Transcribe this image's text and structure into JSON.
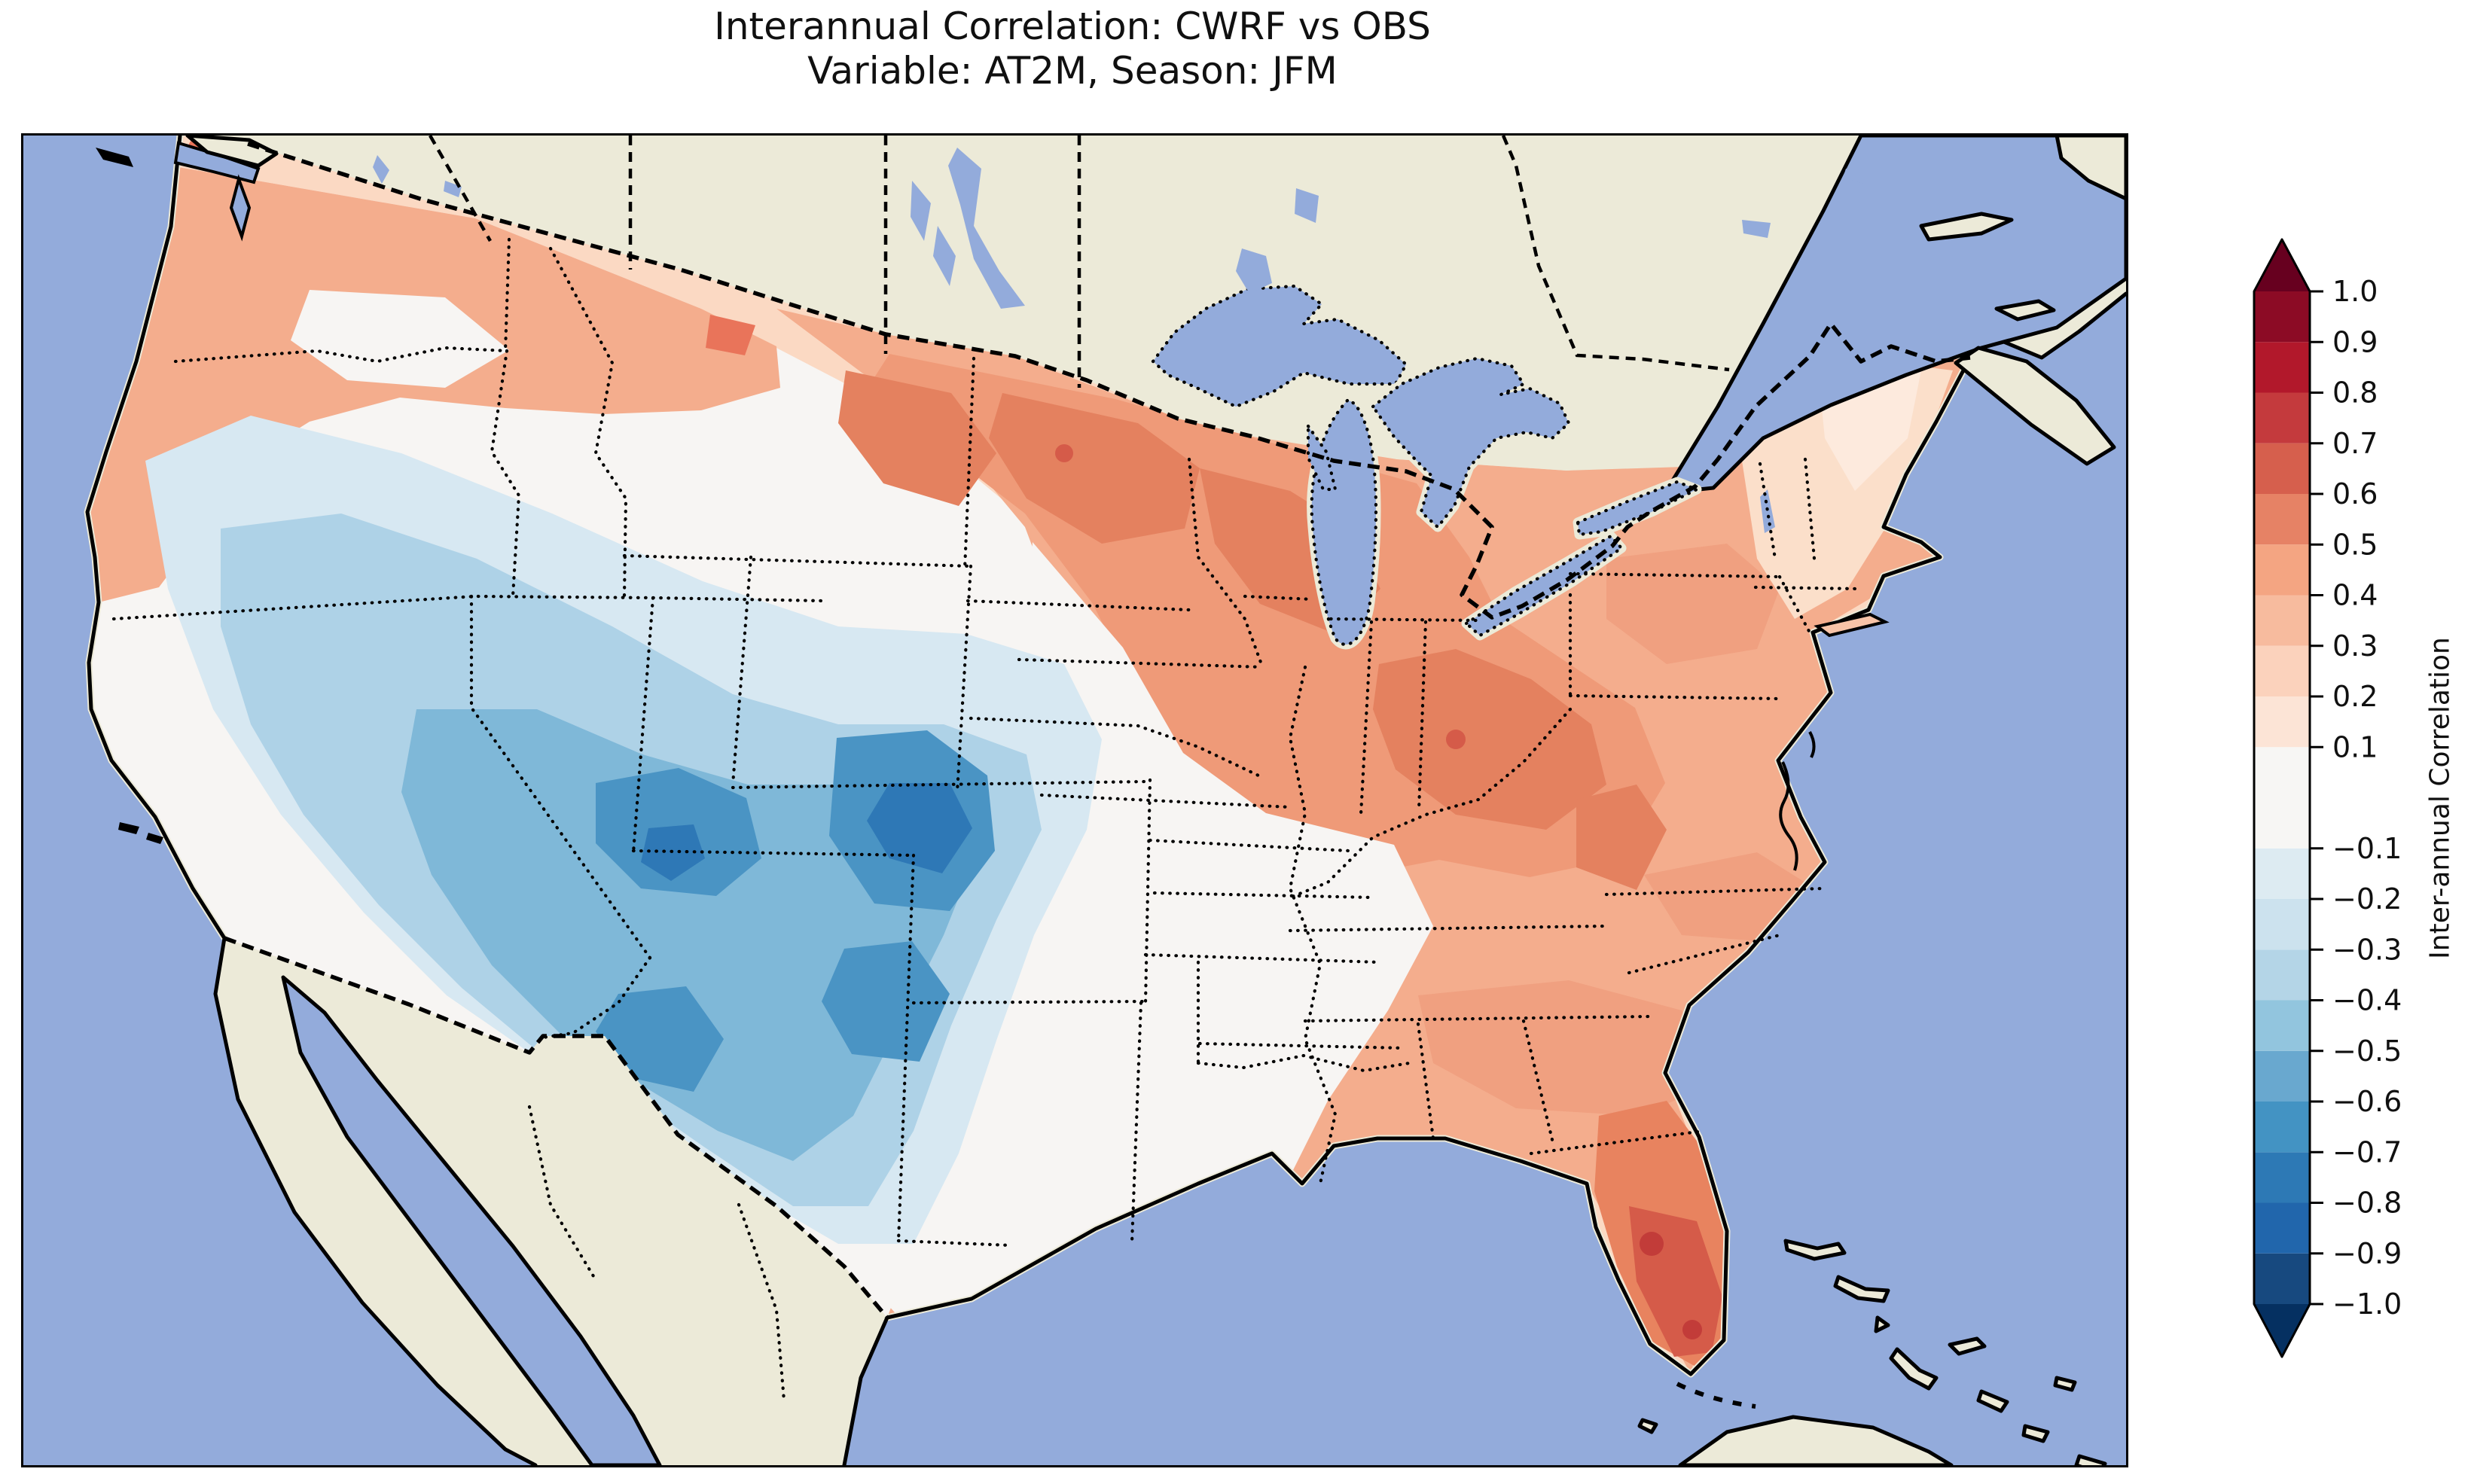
{
  "figure": {
    "title_line1": "Interannual Correlation: CWRF vs OBS",
    "title_line2": "Variable: AT2M, Season: JFM"
  },
  "colorbar": {
    "label": "Inter-annual Correlation",
    "orientation": "vertical",
    "extend": "both",
    "over_color": "#67001f",
    "under_color": "#053061",
    "ticks": [
      {
        "value": 1.0,
        "label": "1.0"
      },
      {
        "value": 0.9,
        "label": "0.9"
      },
      {
        "value": 0.8,
        "label": "0.8"
      },
      {
        "value": 0.7,
        "label": "0.7"
      },
      {
        "value": 0.6,
        "label": "0.6"
      },
      {
        "value": 0.5,
        "label": "0.5"
      },
      {
        "value": 0.4,
        "label": "0.4"
      },
      {
        "value": 0.3,
        "label": "0.3"
      },
      {
        "value": 0.2,
        "label": "0.2"
      },
      {
        "value": 0.1,
        "label": "0.1"
      },
      {
        "value": -0.1,
        "label": "−0.1"
      },
      {
        "value": -0.2,
        "label": "−0.2"
      },
      {
        "value": -0.3,
        "label": "−0.3"
      },
      {
        "value": -0.4,
        "label": "−0.4"
      },
      {
        "value": -0.5,
        "label": "−0.5"
      },
      {
        "value": -0.6,
        "label": "−0.6"
      },
      {
        "value": -0.7,
        "label": "−0.7"
      },
      {
        "value": -0.8,
        "label": "−0.8"
      },
      {
        "value": -0.9,
        "label": "−0.9"
      },
      {
        "value": -1.0,
        "label": "−1.0"
      }
    ],
    "bands": [
      {
        "from": -1.0,
        "to": -0.9,
        "color": "#17497f"
      },
      {
        "from": -0.9,
        "to": -0.8,
        "color": "#2166ac"
      },
      {
        "from": -0.8,
        "to": -0.7,
        "color": "#2d79b5"
      },
      {
        "from": -0.7,
        "to": -0.6,
        "color": "#4393c3"
      },
      {
        "from": -0.6,
        "to": -0.5,
        "color": "#69a8cf"
      },
      {
        "from": -0.5,
        "to": -0.4,
        "color": "#92c5de"
      },
      {
        "from": -0.4,
        "to": -0.3,
        "color": "#b4d5e7"
      },
      {
        "from": -0.3,
        "to": -0.2,
        "color": "#cce2ee"
      },
      {
        "from": -0.2,
        "to": -0.1,
        "color": "#ddebf2"
      },
      {
        "from": -0.1,
        "to": 0.1,
        "color": "#f7f6f4"
      },
      {
        "from": 0.1,
        "to": 0.2,
        "color": "#fce4d6"
      },
      {
        "from": 0.2,
        "to": 0.3,
        "color": "#fbd2bc"
      },
      {
        "from": 0.3,
        "to": 0.4,
        "color": "#f7bb9e"
      },
      {
        "from": 0.4,
        "to": 0.5,
        "color": "#f4a582"
      },
      {
        "from": 0.5,
        "to": 0.6,
        "color": "#e68265"
      },
      {
        "from": 0.6,
        "to": 0.7,
        "color": "#d65f4d"
      },
      {
        "from": 0.7,
        "to": 0.8,
        "color": "#c43a3d"
      },
      {
        "from": 0.8,
        "to": 0.9,
        "color": "#b2182b"
      },
      {
        "from": 0.9,
        "to": 1.0,
        "color": "#8c0b25"
      }
    ]
  },
  "map": {
    "ocean_color": "#93abdb",
    "land_color": "#ecead8",
    "coastline_color": "#000000",
    "state_border_style": "dotted",
    "country_border_style": "dashed",
    "extent": "Continental United States with southern Canada, northern Mexico, Gulf of Mexico, Great Lakes and western Atlantic"
  },
  "chart_data": {
    "type": "heatmap",
    "subtype": "filled-contour-map",
    "title": "Interannual Correlation: CWRF vs OBS",
    "subtitle": "Variable: AT2M, Season: JFM",
    "comparison": "CWRF vs OBS",
    "variable": "AT2M",
    "season": "JFM",
    "colormap": "RdBu_r (discrete bands, 0.1 steps, no 0.0 level)",
    "value_range": [
      -1.0,
      1.0
    ],
    "levels": [
      -1.0,
      -0.9,
      -0.8,
      -0.7,
      -0.6,
      -0.5,
      -0.4,
      -0.3,
      -0.2,
      -0.1,
      0.1,
      0.2,
      0.3,
      0.4,
      0.5,
      0.6,
      0.7,
      0.8,
      0.9,
      1.0
    ],
    "colorbar_label": "Inter-annual Correlation",
    "legend_position": "right",
    "regions": [
      {
        "name": "Pacific Northwest coast (WA, N OR)",
        "approx_correlation": "+0.3 to +0.5"
      },
      {
        "name": "Puget Sound / NW Washington spots",
        "approx_correlation": "+0.5 to +0.6"
      },
      {
        "name": "Interior Northwest (E OR, ID, W WY)",
        "approx_correlation": "-0.1 to +0.2"
      },
      {
        "name": "California coast and Central Valley",
        "approx_correlation": "-0.2 to -0.4"
      },
      {
        "name": "Great Basin (NV, UT)",
        "approx_correlation": "-0.3 to -0.5"
      },
      {
        "name": "Southwest core (AZ, NM, SW CO, Four Corners)",
        "approx_correlation": "-0.5 to -0.7"
      },
      {
        "name": "Eastern Montana and the Dakotas",
        "approx_correlation": "+0.4 to +0.6"
      },
      {
        "name": "Upper Midwest (MN, WI, IA, IL, MI)",
        "approx_correlation": "+0.4 to +0.6"
      },
      {
        "name": "Ohio Valley (IN, OH, KY, WV)",
        "approx_correlation": "+0.4 to +0.6"
      },
      {
        "name": "Central/Southern Plains (KS, OK, most of TX)",
        "approx_correlation": "-0.1 to +0.1"
      },
      {
        "name": "Texas panhandle / NM border fringe",
        "approx_correlation": "-0.1 to -0.3"
      },
      {
        "name": "Gulf Coast states (LA, MS, AL, AR)",
        "approx_correlation": "+0.2 to +0.4"
      },
      {
        "name": "Southeast (TN, GA, Carolinas, VA)",
        "approx_correlation": "+0.2 to +0.5"
      },
      {
        "name": "Mid-Atlantic and NY, PA",
        "approx_correlation": "+0.3 to +0.5"
      },
      {
        "name": "Northern New England (ME, NH, VT)",
        "approx_correlation": "+0.1 to +0.3"
      },
      {
        "name": "Florida peninsula (max near south tip)",
        "approx_correlation": "+0.5 to +0.8"
      }
    ]
  }
}
